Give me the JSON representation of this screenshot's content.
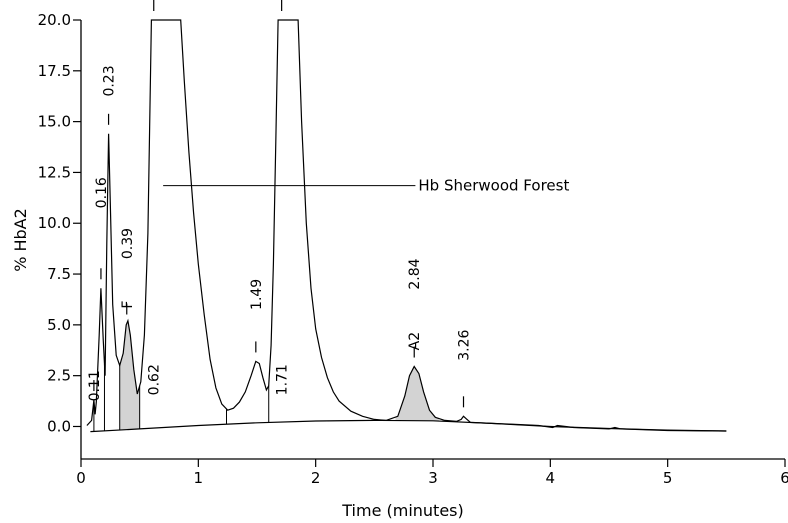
{
  "chart_data": {
    "type": "line",
    "xlabel": "Time (minutes)",
    "ylabel": "% HbA2",
    "xlim": [
      0,
      6
    ],
    "ylim": [
      -1.6,
      20
    ],
    "x_ticks": [
      0,
      1,
      2,
      3,
      4,
      5,
      6
    ],
    "x_tick_labels": [
      "0",
      "1",
      "2",
      "3",
      "4",
      "5",
      "6"
    ],
    "y_ticks": [
      0,
      2.5,
      5,
      7.5,
      10,
      12.5,
      15,
      17.5,
      20
    ],
    "y_tick_labels": [
      "0.0",
      "2.5",
      "5.0",
      "7.5",
      "10.0",
      "12.5",
      "15.0",
      "17.5",
      "20.0"
    ],
    "grid": false,
    "series": [
      {
        "values": [
          [
            0.05,
            0.05
          ],
          [
            0.09,
            0.3
          ],
          [
            0.11,
            1.3
          ],
          [
            0.12,
            0.6
          ],
          [
            0.13,
            1.2
          ],
          [
            0.155,
            4.5
          ],
          [
            0.17,
            6.8
          ],
          [
            0.19,
            4.2
          ],
          [
            0.205,
            2.5
          ],
          [
            0.22,
            9.0
          ],
          [
            0.235,
            14.4
          ],
          [
            0.25,
            11.0
          ],
          [
            0.27,
            6.0
          ],
          [
            0.3,
            3.5
          ],
          [
            0.33,
            3.0
          ],
          [
            0.36,
            3.6
          ],
          [
            0.385,
            5.0
          ],
          [
            0.4,
            5.2
          ],
          [
            0.42,
            4.5
          ],
          [
            0.45,
            2.8
          ],
          [
            0.48,
            1.6
          ],
          [
            0.51,
            2.2
          ],
          [
            0.54,
            4.5
          ],
          [
            0.57,
            9.5
          ],
          [
            0.6,
            20.0
          ],
          [
            0.85,
            20.0
          ],
          [
            0.88,
            17.0
          ],
          [
            0.92,
            13.5
          ],
          [
            0.96,
            10.5
          ],
          [
            1.0,
            8.0
          ],
          [
            1.05,
            5.5
          ],
          [
            1.1,
            3.3
          ],
          [
            1.15,
            1.9
          ],
          [
            1.2,
            1.1
          ],
          [
            1.25,
            0.8
          ],
          [
            1.3,
            0.9
          ],
          [
            1.35,
            1.2
          ],
          [
            1.4,
            1.7
          ],
          [
            1.45,
            2.5
          ],
          [
            1.49,
            3.2
          ],
          [
            1.52,
            3.1
          ],
          [
            1.55,
            2.4
          ],
          [
            1.58,
            1.8
          ],
          [
            1.6,
            2.0
          ],
          [
            1.62,
            4.0
          ],
          [
            1.64,
            8.0
          ],
          [
            1.66,
            14.0
          ],
          [
            1.68,
            20.0
          ],
          [
            1.85,
            20.0
          ],
          [
            1.88,
            15.0
          ],
          [
            1.92,
            10.0
          ],
          [
            1.96,
            6.8
          ],
          [
            2.0,
            4.8
          ],
          [
            2.05,
            3.4
          ],
          [
            2.1,
            2.4
          ],
          [
            2.15,
            1.7
          ],
          [
            2.2,
            1.25
          ],
          [
            2.3,
            0.75
          ],
          [
            2.4,
            0.5
          ],
          [
            2.5,
            0.35
          ],
          [
            2.6,
            0.3
          ],
          [
            2.7,
            0.5
          ],
          [
            2.76,
            1.5
          ],
          [
            2.8,
            2.5
          ],
          [
            2.84,
            2.95
          ],
          [
            2.88,
            2.6
          ],
          [
            2.92,
            1.7
          ],
          [
            2.97,
            0.8
          ],
          [
            3.02,
            0.45
          ],
          [
            3.1,
            0.3
          ],
          [
            3.2,
            0.25
          ],
          [
            3.24,
            0.35
          ],
          [
            3.26,
            0.5
          ],
          [
            3.29,
            0.35
          ],
          [
            3.32,
            0.2
          ],
          [
            3.5,
            0.15
          ],
          [
            3.7,
            0.1
          ],
          [
            3.9,
            0.05
          ],
          [
            4.02,
            -0.05
          ],
          [
            4.06,
            0.05
          ],
          [
            4.2,
            -0.05
          ],
          [
            4.5,
            -0.12
          ],
          [
            4.55,
            -0.05
          ],
          [
            4.6,
            -0.12
          ],
          [
            5.0,
            -0.2
          ],
          [
            5.5,
            -0.22
          ]
        ]
      },
      {
        "values": [
          [
            0.08,
            -0.25
          ],
          [
            0.5,
            -0.12
          ],
          [
            1.0,
            0.05
          ],
          [
            1.5,
            0.18
          ],
          [
            2.0,
            0.27
          ],
          [
            2.5,
            0.3
          ],
          [
            3.0,
            0.28
          ],
          [
            3.5,
            0.15
          ],
          [
            4.0,
            0.0
          ],
          [
            4.5,
            -0.1
          ],
          [
            5.0,
            -0.18
          ],
          [
            5.5,
            -0.22
          ]
        ]
      }
    ],
    "peak_labels": [
      {
        "text": "0.11",
        "x": 0.11,
        "y": 2.0
      },
      {
        "text": "0.16",
        "x": 0.17,
        "y": 11.5
      },
      {
        "text": "0.23",
        "x": 0.235,
        "y": 17.0
      },
      {
        "text": "0.39",
        "x": 0.39,
        "y": 9.0
      },
      {
        "text": "0.62",
        "x": 0.62,
        "y": 2.3
      },
      {
        "text": "1.49",
        "x": 1.49,
        "y": 6.5
      },
      {
        "text": "1.71",
        "x": 1.71,
        "y": 2.3
      },
      {
        "text": "2.84",
        "x": 2.84,
        "y": 7.5
      },
      {
        "text": "3.26",
        "x": 3.26,
        "y": 4.0
      }
    ],
    "peak_names": [
      {
        "text": "F",
        "x": 0.39,
        "y": 6.0
      },
      {
        "text": "A2",
        "x": 2.84,
        "y": 4.2
      }
    ],
    "annotations": [
      {
        "text": "Hb Sherwood Forest",
        "x_from": 0.7,
        "x_to": 2.85,
        "y": 11.85
      }
    ]
  }
}
